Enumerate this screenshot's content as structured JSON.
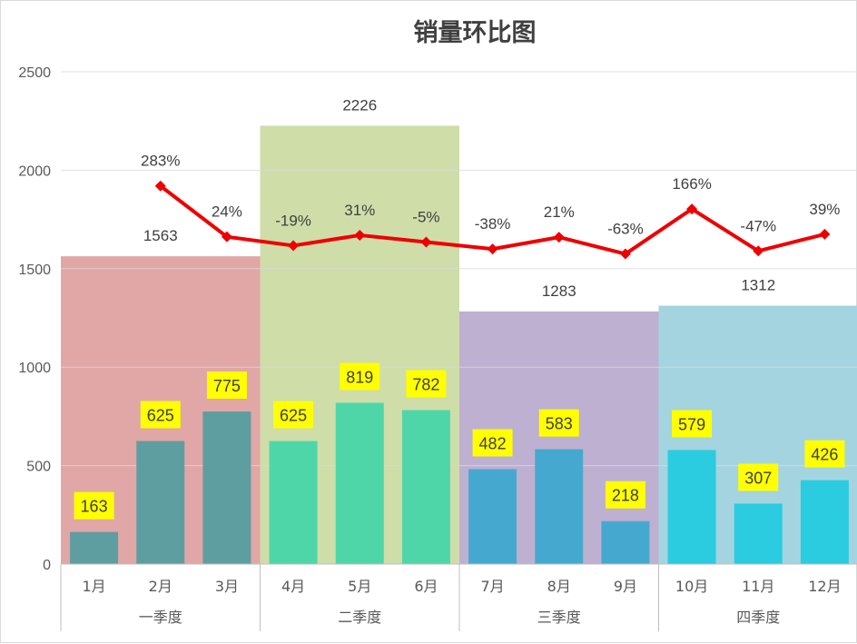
{
  "chart_data": {
    "type": "bar",
    "title": "销量环比图",
    "xlabel": "",
    "ylabel": "",
    "ylim": [
      0,
      2500
    ],
    "yticks": [
      0,
      500,
      1000,
      1500,
      2000,
      2500
    ],
    "grid": true,
    "categories": [
      "1月",
      "2月",
      "3月",
      "4月",
      "5月",
      "6月",
      "7月",
      "8月",
      "9月",
      "10月",
      "11月",
      "12月"
    ],
    "series": [
      {
        "values": [
          163,
          625,
          775,
          625,
          819,
          782,
          482,
          583,
          218,
          579,
          307,
          426
        ],
        "colors": [
          "#5f9ea0",
          "#5f9ea0",
          "#5f9ea0",
          "#4fd6a8",
          "#4fd6a8",
          "#4fd6a8",
          "#45a9cf",
          "#45a9cf",
          "#45a9cf",
          "#2bccdf",
          "#2bccdf",
          "#2bccdf"
        ],
        "label_bg": "#ffff00"
      }
    ],
    "quarters": [
      {
        "label": "一季度",
        "total": 1563,
        "color": "#e0a7a6"
      },
      {
        "label": "二季度",
        "total": 2226,
        "color": "#cfdda9"
      },
      {
        "label": "三季度",
        "total": 1283,
        "color": "#beb0d0"
      },
      {
        "label": "四季度",
        "total": 1312,
        "color": "#a4d4e0"
      }
    ],
    "ratio_line": {
      "color": "#ee0000",
      "start_index": 1,
      "labels": [
        "283%",
        "24%",
        "-19%",
        "31%",
        "-5%",
        "-38%",
        "21%",
        "-63%",
        "166%",
        "-47%",
        "39%"
      ],
      "positions": [
        1920,
        1662,
        1617,
        1670,
        1635,
        1600,
        1660,
        1575,
        1803,
        1590,
        1675
      ]
    }
  }
}
